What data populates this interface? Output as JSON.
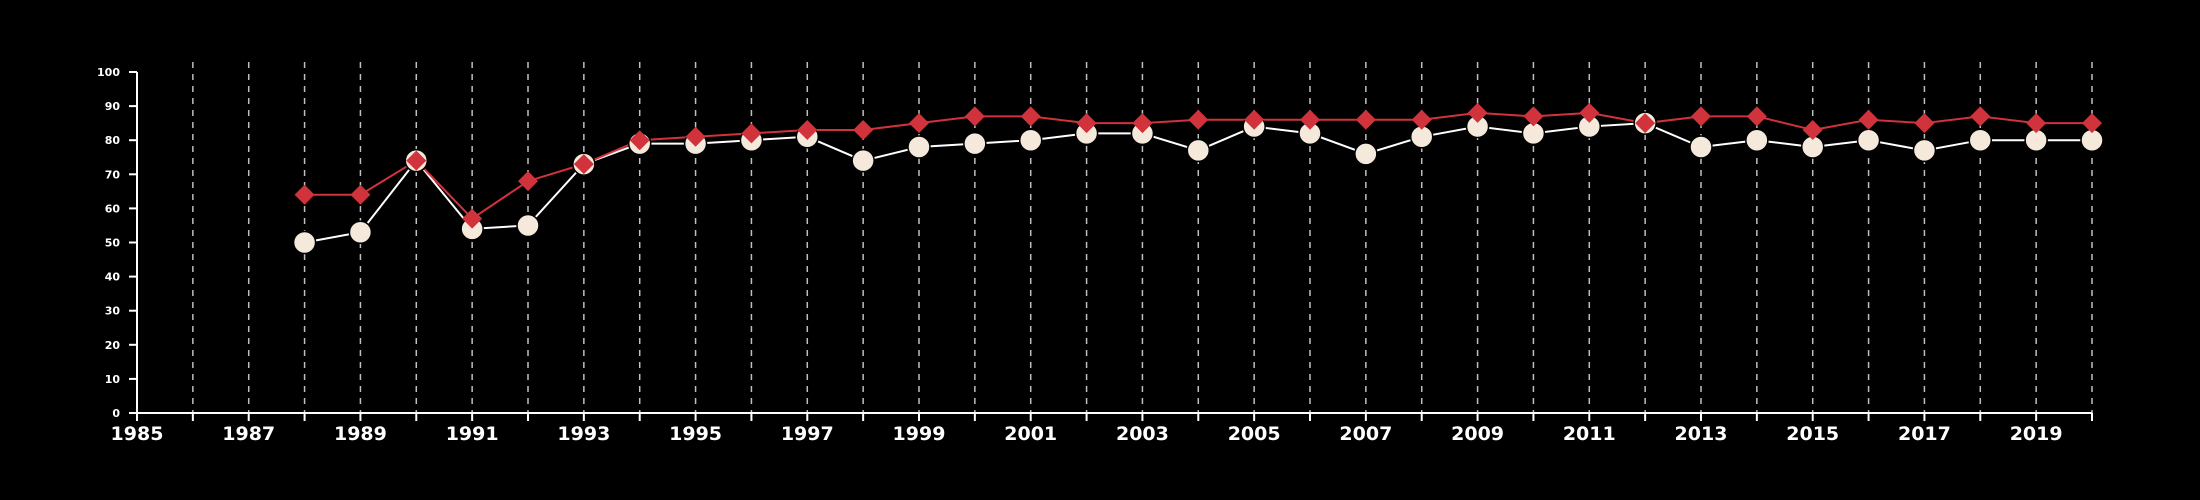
{
  "chart_data": {
    "type": "line",
    "title": "",
    "xlabel": "",
    "ylabel": "",
    "xlim": [
      1985,
      2020
    ],
    "ylim": [
      0,
      100
    ],
    "x_ticks": [
      1985,
      1987,
      1989,
      1991,
      1993,
      1995,
      1997,
      1999,
      2001,
      2003,
      2005,
      2007,
      2009,
      2011,
      2013,
      2015,
      2017,
      2019
    ],
    "y_ticks": [
      0,
      10,
      20,
      30,
      40,
      50,
      60,
      70,
      80,
      90,
      100
    ],
    "grid": "vertical dashed lines at every year",
    "legend": "none",
    "colors": {
      "background": "#000000",
      "axis": "#ffffff",
      "grid": "#bfbfbf"
    },
    "x": [
      1988,
      1989,
      1990,
      1991,
      1992,
      1993,
      1994,
      1995,
      1996,
      1997,
      1998,
      1999,
      2000,
      2001,
      2002,
      2003,
      2004,
      2005,
      2006,
      2007,
      2008,
      2009,
      2010,
      2011,
      2012,
      2013,
      2014,
      2015,
      2016,
      2017,
      2018,
      2019,
      2020
    ],
    "series": [
      {
        "marker": "circle",
        "color": "#f5e9dc",
        "line_color": "#ffffff",
        "values": [
          50,
          53,
          74,
          54,
          55,
          73,
          79,
          79,
          80,
          81,
          74,
          78,
          79,
          80,
          82,
          82,
          77,
          84,
          82,
          76,
          81,
          84,
          82,
          84,
          85,
          78,
          80,
          78,
          80,
          77,
          80,
          80,
          80
        ]
      },
      {
        "marker": "diamond",
        "color": "#d0333b",
        "line_color": "#d0333b",
        "values": [
          64,
          64,
          74,
          57,
          68,
          73,
          80,
          81,
          82,
          83,
          83,
          85,
          87,
          87,
          85,
          85,
          86,
          86,
          86,
          86,
          86,
          88,
          87,
          88,
          85,
          87,
          87,
          83,
          86,
          85,
          87,
          85,
          85
        ]
      }
    ]
  }
}
